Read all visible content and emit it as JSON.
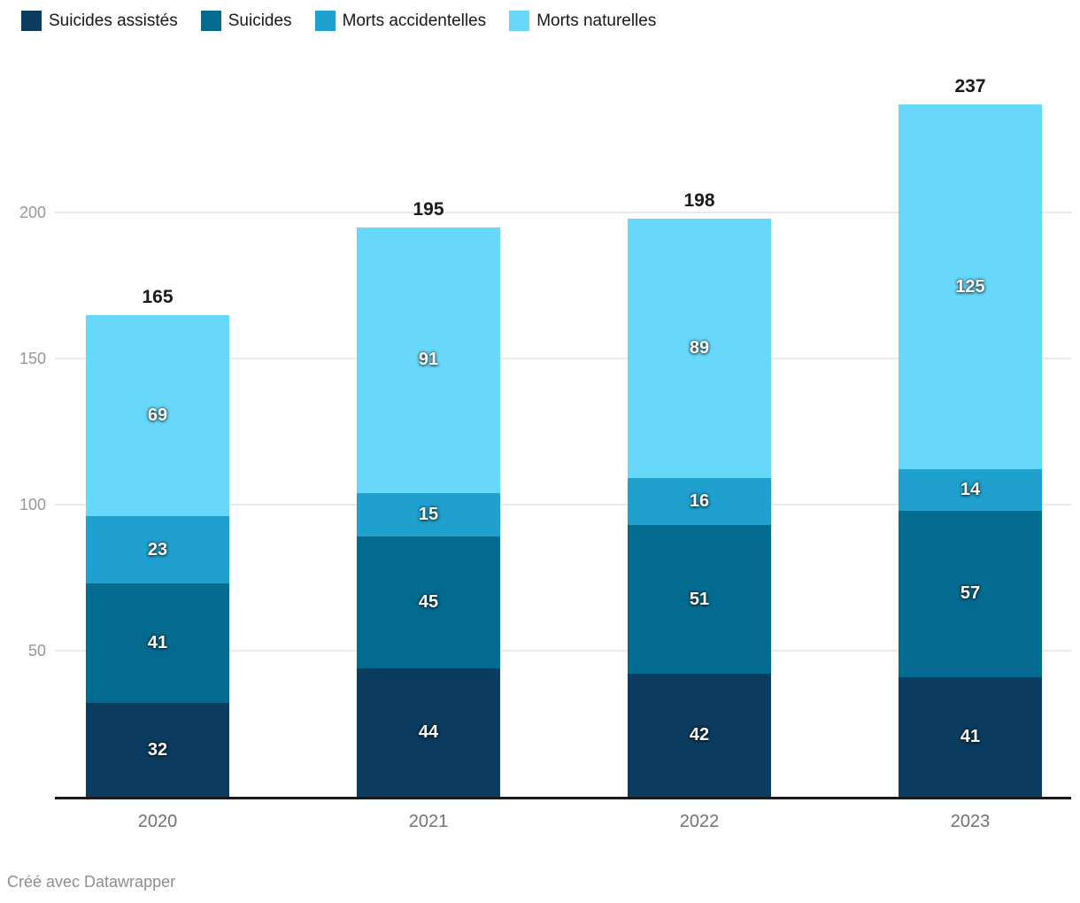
{
  "chart_data": {
    "type": "bar",
    "stacked": true,
    "title": "",
    "xlabel": "",
    "ylabel": "",
    "categories": [
      "2020",
      "2021",
      "2022",
      "2023"
    ],
    "series": [
      {
        "name": "Suicides assistés",
        "color": "#0b3c5f",
        "values": [
          32,
          44,
          42,
          41
        ]
      },
      {
        "name": "Suicides",
        "color": "#046b90",
        "values": [
          41,
          45,
          51,
          57
        ]
      },
      {
        "name": "Morts accidentelles",
        "color": "#1fa0ce",
        "values": [
          23,
          15,
          16,
          14
        ]
      },
      {
        "name": "Morts naturelles",
        "color": "#67d7fa",
        "values": [
          69,
          91,
          89,
          125
        ]
      }
    ],
    "totals": [
      165,
      195,
      198,
      237
    ],
    "yticks": [
      50,
      100,
      150,
      200
    ],
    "ylim": [
      0,
      240
    ],
    "grid": true,
    "grid_color": "#e9e9e9",
    "axis_color": "#1a1a1d",
    "tick_label_color": "#979797",
    "legend_position": "top-left"
  },
  "footer": {
    "credit": "Créé avec Datawrapper"
  }
}
